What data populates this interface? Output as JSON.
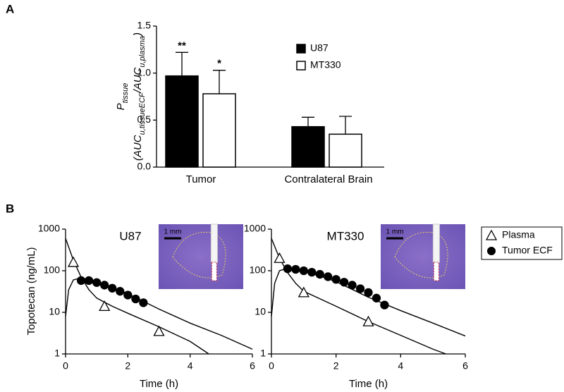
{
  "panels": [
    "A",
    "B"
  ],
  "chart_data": [
    {
      "type": "bar",
      "ylabel": [
        "P",
        "tissue"
      ],
      "ylabel2": [
        "(AUC",
        "u,tissueECF",
        "/AUC",
        "u,plasma",
        ")"
      ],
      "categories": [
        "Tumor",
        "Contralateral Brain"
      ],
      "series": [
        {
          "name": "U87",
          "color": "#000000",
          "values": [
            0.97,
            0.43
          ],
          "errors": [
            0.25,
            0.1
          ],
          "annotations": [
            "**",
            null
          ]
        },
        {
          "name": "MT330",
          "color": "#ffffff",
          "values": [
            0.78,
            0.35
          ],
          "errors": [
            0.25,
            0.19
          ],
          "annotations": [
            "*",
            null
          ]
        }
      ],
      "ylim": [
        0,
        1.5
      ],
      "yticks": [
        {
          "value": 0,
          "label": "0.0"
        },
        0.5,
        {
          "value": 1,
          "label": "1.0"
        },
        1.5
      ]
    },
    {
      "type": "line",
      "title": "U87",
      "scale_label": "1 mm",
      "ylabel": "Topotecan (ng/mL)",
      "xlabel": "Time (h)",
      "log_y": true,
      "xlim": [
        0,
        6
      ],
      "xticks": [
        0,
        2,
        4,
        6
      ],
      "ylim": [
        1,
        1000
      ],
      "yticks": [
        1,
        10,
        100,
        1000
      ],
      "series": [
        {
          "name": "Plasma",
          "marker": "triangle",
          "color": "#ffffff",
          "x": [
            0.25,
            1.25,
            3
          ],
          "values": [
            160,
            14,
            3.5
          ]
        },
        {
          "name": "Tumor ECF",
          "marker": "circle",
          "color": "#000000",
          "x": [
            0.5,
            0.75,
            1,
            1.25,
            1.5,
            1.75,
            2,
            2.25,
            2.5
          ],
          "values": [
            58,
            58,
            52,
            45,
            38,
            32,
            26,
            21,
            17
          ]
        },
        {
          "marker": "none",
          "color": "#000000",
          "x": [
            0,
            0.25,
            0.5,
            0.75,
            1,
            1.5,
            2,
            3,
            4,
            4.6
          ],
          "values": [
            600,
            180,
            70,
            35,
            22,
            14,
            9.5,
            4.5,
            2,
            1
          ]
        },
        {
          "marker": "none",
          "color": "#000000",
          "x": [
            0,
            0.1,
            0.25,
            0.5,
            1,
            2,
            3,
            4,
            5,
            6
          ],
          "values": [
            8,
            35,
            60,
            68,
            52,
            28,
            12,
            5.5,
            2.8,
            1.3
          ]
        }
      ]
    },
    {
      "type": "line",
      "title": "MT330",
      "scale_label": "1 mm",
      "xlabel": "Time (h)",
      "log_y": true,
      "xlim": [
        0,
        6
      ],
      "xticks": [
        0,
        2,
        4,
        6
      ],
      "ylim": [
        1,
        1000
      ],
      "yticks": [
        1,
        10,
        100,
        1000
      ],
      "series": [
        {
          "marker": "triangle",
          "color": "#ffffff",
          "x": [
            0.25,
            1,
            3
          ],
          "values": [
            200,
            30,
            6
          ]
        },
        {
          "marker": "circle",
          "color": "#000000",
          "x": [
            0.5,
            0.75,
            1,
            1.25,
            1.5,
            1.75,
            2,
            2.25,
            2.5,
            2.75,
            3,
            3.25,
            3.5
          ],
          "values": [
            112,
            108,
            100,
            92,
            82,
            72,
            62,
            53,
            45,
            37,
            30,
            22,
            15
          ]
        },
        {
          "marker": "none",
          "color": "#000000",
          "x": [
            0,
            0.25,
            0.5,
            0.75,
            1,
            2,
            3,
            4,
            5,
            5.4
          ],
          "values": [
            600,
            200,
            90,
            50,
            32,
            14,
            6,
            2.8,
            1.3,
            1
          ]
        },
        {
          "marker": "none",
          "color": "#000000",
          "x": [
            0,
            0.1,
            0.25,
            0.5,
            1,
            2,
            3,
            4,
            5,
            6
          ],
          "values": [
            8,
            50,
            100,
            115,
            100,
            55,
            23,
            11,
            5.5,
            2.7
          ]
        }
      ]
    }
  ]
}
